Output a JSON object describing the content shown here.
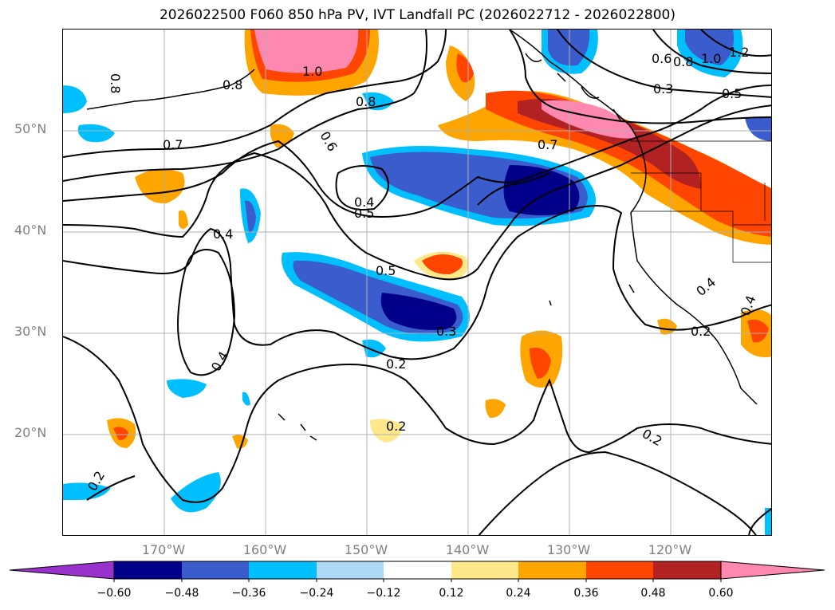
{
  "title": "2026022500 F060 850 hPa PV, IVT Landfall PC (2026022712 - 2026022800)",
  "latitude_labels": [
    "50°N",
    "40°N",
    "30°N",
    "20°N"
  ],
  "longitude_labels": [
    "170°W",
    "160°W",
    "150°W",
    "140°W",
    "130°W",
    "120°W"
  ],
  "contour_labels": [
    "0.8",
    "0.8",
    "1.0",
    "0.8",
    "0.6",
    "0.7",
    "0.6",
    "0.8",
    "1.0",
    "1.2",
    "0.3",
    "0.5",
    "0.4",
    "0.5",
    "0.4",
    "0.7",
    "0.5",
    "0.3",
    "0.4",
    "0.2",
    "0.2",
    "0.2",
    "0.2",
    "0.4",
    "0.4",
    "0.2"
  ],
  "colorbar": {
    "ticks": [
      "−0.60",
      "−0.48",
      "−0.36",
      "−0.24",
      "−0.12",
      "0.12",
      "0.24",
      "0.36",
      "0.48",
      "0.60"
    ],
    "colors": [
      "#9932cc",
      "#00008b",
      "#3a5ccc",
      "#00bfff",
      "#add8f6",
      "#ffffff",
      "#ffe88a",
      "#ffa500",
      "#ff4500",
      "#b22222",
      "#ff88b0"
    ]
  }
}
